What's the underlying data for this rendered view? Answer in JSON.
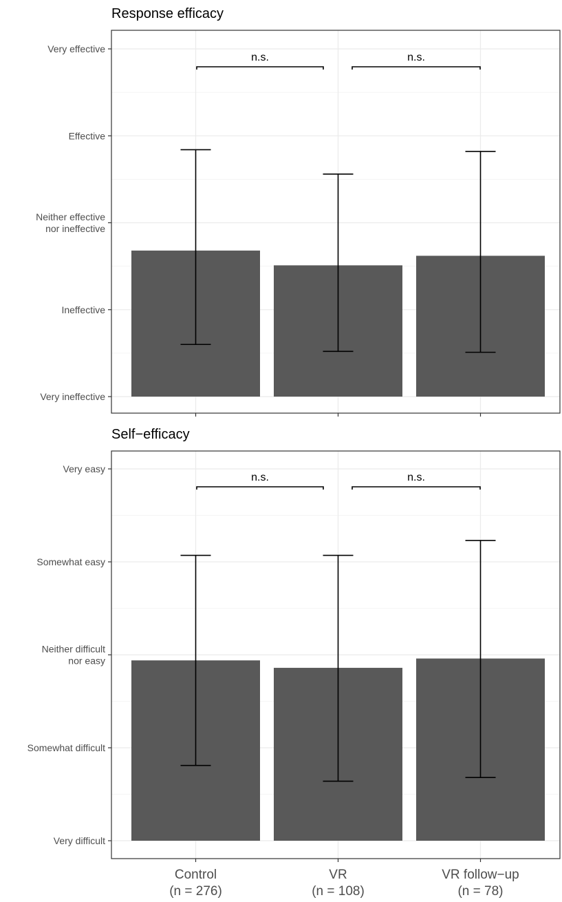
{
  "chart_data": [
    {
      "type": "bar",
      "title": "Response efficacy",
      "categories": [
        "Control",
        "VR",
        "VR follow−up"
      ],
      "category_counts": [
        "(n = 276)",
        "(n = 108)",
        "(n = 78)"
      ],
      "values": [
        2.68,
        2.51,
        2.62
      ],
      "error_low": [
        1.6,
        1.52,
        1.51
      ],
      "error_high": [
        3.84,
        3.56,
        3.82
      ],
      "y_ticks": [
        {
          "value": 1,
          "label": [
            "Very ineffective"
          ]
        },
        {
          "value": 2,
          "label": [
            "Ineffective"
          ]
        },
        {
          "value": 3,
          "label": [
            "Neither effective",
            "nor ineffective"
          ]
        },
        {
          "value": 4,
          "label": [
            "Effective"
          ]
        },
        {
          "value": 5,
          "label": [
            "Very effective"
          ]
        }
      ],
      "ylim": [
        1,
        5.2
      ],
      "grid": true,
      "significance": [
        {
          "from": 0,
          "to": 1,
          "label": "n.s."
        },
        {
          "from": 1,
          "to": 2,
          "label": "n.s."
        }
      ],
      "bar_color": "#595959"
    },
    {
      "type": "bar",
      "title": "Self−efficacy",
      "categories": [
        "Control",
        "VR",
        "VR follow−up"
      ],
      "category_counts": [
        "(n = 276)",
        "(n = 108)",
        "(n = 78)"
      ],
      "values": [
        2.94,
        2.86,
        2.96
      ],
      "error_low": [
        1.81,
        1.64,
        1.68
      ],
      "error_high": [
        4.07,
        4.07,
        4.23
      ],
      "y_ticks": [
        {
          "value": 1,
          "label": [
            "Very difficult"
          ]
        },
        {
          "value": 2,
          "label": [
            "Somewhat difficult"
          ]
        },
        {
          "value": 3,
          "label": [
            "Neither difficult",
            "nor easy"
          ]
        },
        {
          "value": 4,
          "label": [
            "Somewhat easy"
          ]
        },
        {
          "value": 5,
          "label": [
            "Very easy"
          ]
        }
      ],
      "ylim": [
        1,
        5.2
      ],
      "grid": true,
      "significance": [
        {
          "from": 0,
          "to": 1,
          "label": "n.s."
        },
        {
          "from": 1,
          "to": 2,
          "label": "n.s."
        }
      ],
      "bar_color": "#595959"
    }
  ]
}
